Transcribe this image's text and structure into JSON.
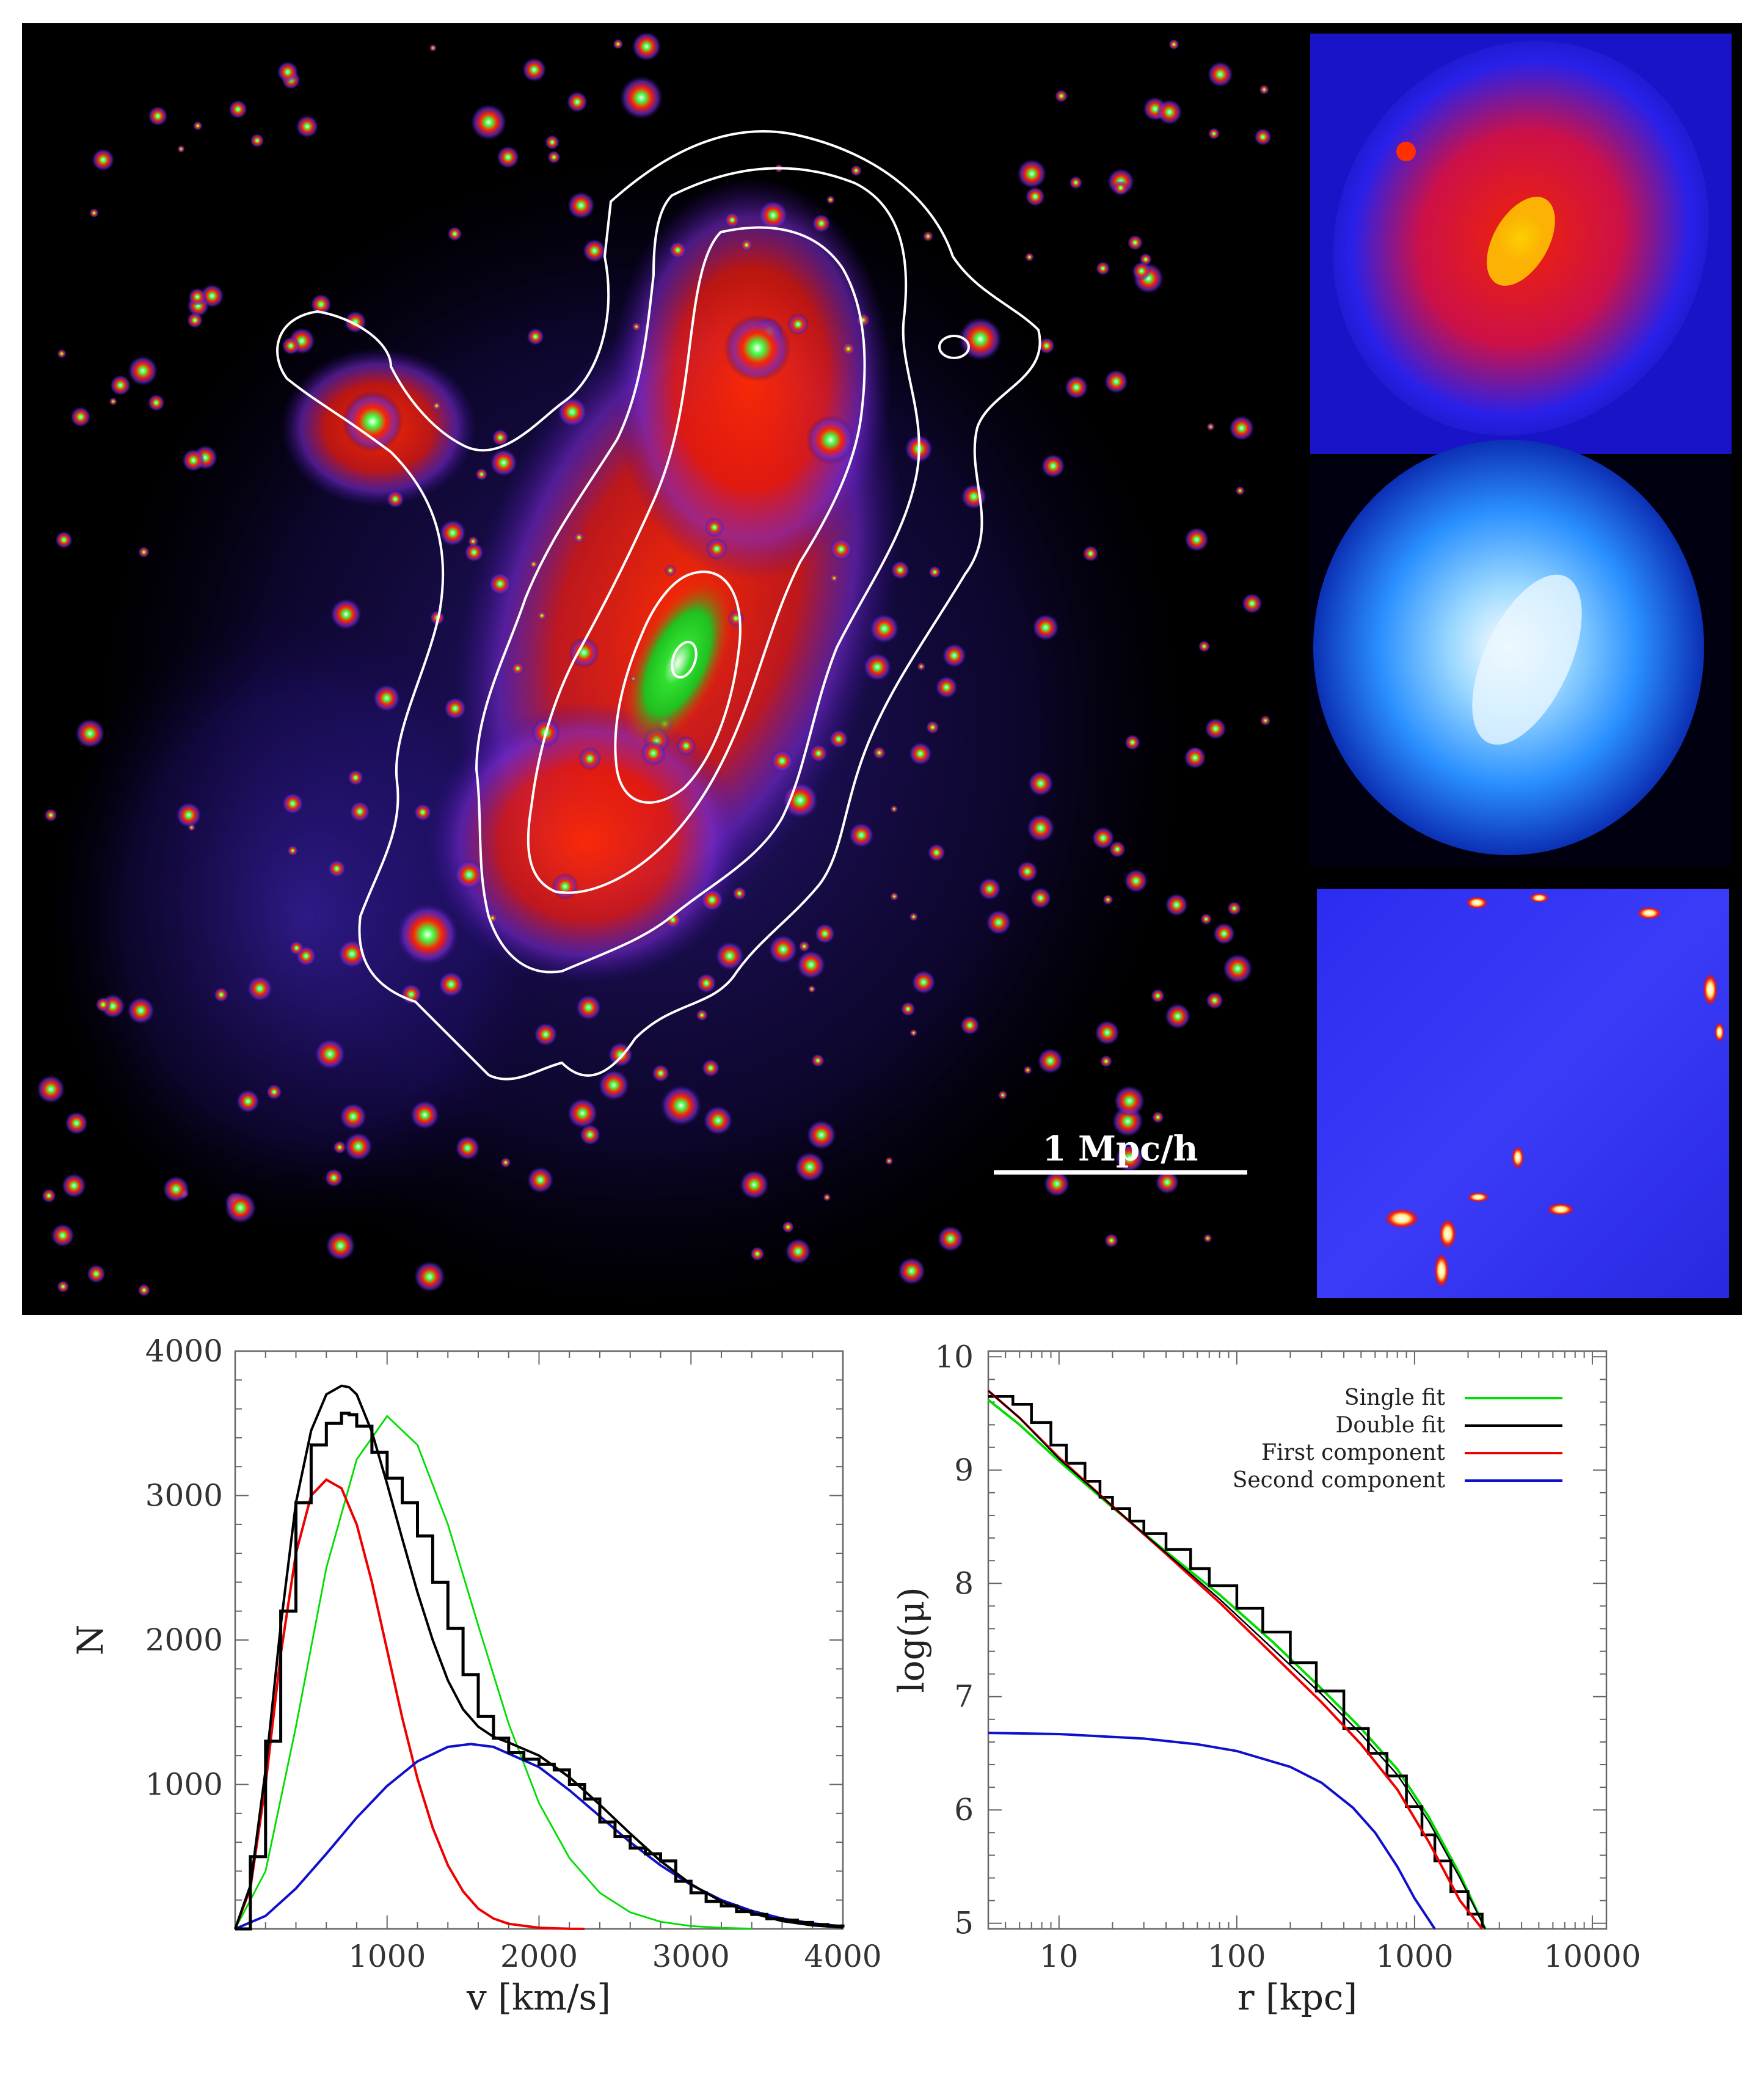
{
  "colors": {
    "bg_black": "#000000",
    "halo_red": "#ff1a00",
    "halo_green": "#33ee33",
    "halo_purple": "#5a2ad8",
    "contour_white": "#ffffff",
    "fit_green": "#00dd00",
    "fit_black": "#000000",
    "first_red": "#ee0000",
    "second_blue": "#1010cc",
    "axis_gray": "#555555"
  },
  "map": {
    "scalebar_label": "1 Mpc/h",
    "insets": [
      {
        "name": "dark-matter-density-inset",
        "scheme": "blue-red"
      },
      {
        "name": "gas-xray-inset",
        "scheme": "blue-white"
      },
      {
        "name": "temperature-residual-inset",
        "scheme": "blue-red-white"
      }
    ]
  },
  "chart_data": [
    {
      "type": "line",
      "panel": "velocity-distribution",
      "title": "",
      "xlabel": "v [km/s]",
      "ylabel": "N",
      "xlim": [
        0,
        4000
      ],
      "ylim": [
        0,
        4000
      ],
      "xticks": [
        1000,
        2000,
        3000,
        4000
      ],
      "yticks": [
        1000,
        2000,
        3000,
        4000
      ],
      "tick_labels_x": [
        "1000",
        "2000",
        "3000",
        "4000"
      ],
      "tick_labels_y": [
        "1000",
        "2000",
        "3000",
        "4000"
      ],
      "series": [
        {
          "name": "Histogram",
          "style": "step",
          "color": "#000000",
          "x": [
            0,
            100,
            200,
            300,
            400,
            500,
            600,
            700,
            750,
            800,
            900,
            1000,
            1100,
            1200,
            1300,
            1400,
            1500,
            1600,
            1700,
            1800,
            1900,
            2000,
            2100,
            2200,
            2300,
            2400,
            2500,
            2600,
            2700,
            2800,
            2900,
            3000,
            3100,
            3200,
            3300,
            3400,
            3500,
            3600,
            3700,
            3800,
            3900,
            4000
          ],
          "y": [
            0,
            500,
            1300,
            2200,
            2950,
            3350,
            3500,
            3570,
            3560,
            3480,
            3300,
            3120,
            2950,
            2720,
            2400,
            2080,
            1760,
            1470,
            1320,
            1220,
            1175,
            1140,
            1100,
            1000,
            900,
            740,
            640,
            560,
            520,
            470,
            330,
            250,
            190,
            160,
            120,
            100,
            70,
            60,
            45,
            30,
            20,
            10
          ]
        },
        {
          "name": "Single fit",
          "style": "line",
          "color": "#00dd00",
          "x": [
            0,
            200,
            400,
            600,
            800,
            1000,
            1200,
            1400,
            1600,
            1800,
            2000,
            2200,
            2400,
            2600,
            2800,
            3000,
            3200,
            3400
          ],
          "y": [
            0,
            400,
            1400,
            2500,
            3250,
            3550,
            3350,
            2800,
            2100,
            1420,
            870,
            490,
            250,
            115,
            50,
            20,
            8,
            2
          ]
        },
        {
          "name": "Double fit",
          "style": "line",
          "color": "#000000",
          "x": [
            0,
            100,
            200,
            300,
            400,
            500,
            600,
            700,
            750,
            800,
            900,
            1000,
            1100,
            1200,
            1300,
            1400,
            1500,
            1600,
            1700,
            1800,
            2000,
            2200,
            2400,
            2600,
            2800,
            3000,
            3200,
            3400,
            3600,
            3800,
            4000
          ],
          "y": [
            0,
            300,
            1100,
            2100,
            2950,
            3450,
            3700,
            3760,
            3750,
            3700,
            3440,
            3080,
            2700,
            2330,
            2000,
            1720,
            1520,
            1400,
            1330,
            1290,
            1200,
            1050,
            860,
            660,
            470,
            310,
            190,
            110,
            55,
            25,
            10
          ]
        },
        {
          "name": "First component",
          "style": "line",
          "color": "#ee0000",
          "x": [
            0,
            100,
            200,
            300,
            400,
            500,
            600,
            700,
            800,
            900,
            1000,
            1100,
            1200,
            1300,
            1400,
            1500,
            1600,
            1700,
            1800,
            2000,
            2200,
            2300
          ],
          "y": [
            0,
            280,
            1000,
            1900,
            2600,
            3000,
            3110,
            3050,
            2800,
            2400,
            1930,
            1460,
            1040,
            700,
            440,
            260,
            140,
            72,
            35,
            8,
            1,
            0
          ]
        },
        {
          "name": "Second component",
          "style": "line",
          "color": "#1010cc",
          "x": [
            0,
            200,
            400,
            600,
            800,
            1000,
            1200,
            1400,
            1550,
            1700,
            2000,
            2200,
            2400,
            2600,
            2800,
            3000,
            3200,
            3400,
            3600,
            3800,
            4000
          ],
          "y": [
            0,
            90,
            280,
            520,
            770,
            990,
            1160,
            1260,
            1280,
            1260,
            1120,
            960,
            780,
            600,
            440,
            305,
            200,
            125,
            72,
            38,
            18
          ]
        }
      ]
    },
    {
      "type": "line",
      "panel": "surface-density-profile",
      "title": "",
      "xlabel": "r [kpc]",
      "ylabel": "log(μ)",
      "xscale": "log",
      "xlim": [
        4,
        12000
      ],
      "ylim": [
        4.95,
        10.05
      ],
      "xticks": [
        10,
        100,
        1000,
        10000
      ],
      "yticks": [
        5,
        6,
        7,
        8,
        9,
        10
      ],
      "tick_labels_x": [
        "10",
        "100",
        "1000",
        "10000"
      ],
      "tick_labels_y": [
        "5",
        "6",
        "7",
        "8",
        "9",
        "10"
      ],
      "legend": {
        "position": "top-right",
        "entries": [
          "Single fit",
          "Double fit",
          "First component",
          "Second component"
        ]
      },
      "series": [
        {
          "name": "Histogram",
          "style": "step",
          "color": "#000000",
          "x": [
            4,
            5.5,
            7,
            9,
            11,
            14,
            17,
            20,
            25,
            30,
            40,
            55,
            70,
            100,
            140,
            200,
            280,
            400,
            550,
            700,
            900,
            1100,
            1300,
            1600,
            2000,
            2400
          ],
          "y": [
            9.65,
            9.58,
            9.42,
            9.22,
            9.06,
            8.9,
            8.76,
            8.66,
            8.55,
            8.44,
            8.3,
            8.13,
            7.98,
            7.78,
            7.57,
            7.3,
            7.05,
            6.72,
            6.5,
            6.3,
            6.03,
            5.78,
            5.55,
            5.28,
            5.08,
            4.96
          ]
        },
        {
          "name": "Single fit",
          "style": "line",
          "color": "#00dd00",
          "x": [
            4,
            6,
            10,
            20,
            40,
            80,
            160,
            300,
            500,
            800,
            1200,
            1800,
            2500
          ],
          "y": [
            9.62,
            9.4,
            9.08,
            8.67,
            8.28,
            7.9,
            7.48,
            7.07,
            6.72,
            6.36,
            5.94,
            5.43,
            4.95
          ]
        },
        {
          "name": "Double fit",
          "style": "line",
          "color": "#000000",
          "x": [
            4,
            6,
            10,
            20,
            40,
            80,
            160,
            300,
            500,
            800,
            1200,
            1800,
            2500
          ],
          "y": [
            9.7,
            9.46,
            9.1,
            8.68,
            8.27,
            7.86,
            7.42,
            7.02,
            6.67,
            6.31,
            5.9,
            5.4,
            4.95
          ]
        },
        {
          "name": "First component",
          "style": "line",
          "color": "#ee0000",
          "x": [
            4,
            6,
            10,
            20,
            40,
            80,
            160,
            300,
            500,
            800,
            1200,
            1800,
            2400
          ],
          "y": [
            9.7,
            9.46,
            9.11,
            8.68,
            8.26,
            7.83,
            7.37,
            6.95,
            6.58,
            6.18,
            5.72,
            5.2,
            4.95
          ]
        },
        {
          "name": "Second component",
          "style": "line",
          "color": "#1010cc",
          "x": [
            4,
            10,
            30,
            60,
            100,
            200,
            300,
            450,
            600,
            800,
            1000,
            1300
          ],
          "y": [
            6.68,
            6.67,
            6.63,
            6.58,
            6.52,
            6.38,
            6.24,
            6.02,
            5.8,
            5.5,
            5.22,
            4.95
          ]
        }
      ]
    }
  ]
}
